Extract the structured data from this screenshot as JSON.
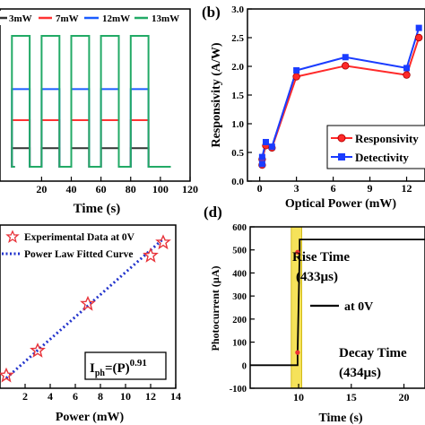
{
  "chart_data": [
    {
      "panel": "a",
      "type": "line",
      "xlabel": "Time (s)",
      "ylabel": "",
      "xlim": [
        -8,
        120
      ],
      "ylim": [
        0,
        1
      ],
      "x_ticks": [
        "20",
        "40",
        "60",
        "80",
        "100",
        "120"
      ],
      "legend_position": "top",
      "series": [
        {
          "name": "3mW",
          "color": "#333333",
          "off": 0.085,
          "on": 0.21
        },
        {
          "name": "7mW",
          "color": "#ff3333",
          "off": 0.085,
          "on": 0.4
        },
        {
          "name": "12mW",
          "color": "#1a5cff",
          "off": 0.085,
          "on": 0.61
        },
        {
          "name": "13mW",
          "color": "#22aa66",
          "off": 0.085,
          "on": 0.97
        }
      ],
      "pulses": [
        [
          0,
          12
        ],
        [
          20,
          32
        ],
        [
          40,
          52
        ],
        [
          60,
          72
        ],
        [
          80,
          92
        ]
      ],
      "end_time": 107
    },
    {
      "panel": "b",
      "panel_label": "(b)",
      "type": "line",
      "xlabel": "Optical Power (mW)",
      "ylabel": "Responsivity (A/W)",
      "xlim": [
        -1,
        13.5
      ],
      "ylim": [
        0,
        3.0
      ],
      "x_ticks": [
        "0",
        "3",
        "6",
        "9",
        "12"
      ],
      "y_ticks": [
        "0.0",
        "0.5",
        "1.0",
        "1.5",
        "2.0",
        "2.5",
        "3.0"
      ],
      "legend_position": "bottom-right",
      "series": [
        {
          "name": "Responsivity",
          "color": "#ff2a2a",
          "marker": "circle",
          "x": [
            0.2,
            0.2,
            0.5,
            1,
            3,
            7,
            12,
            13
          ],
          "y": [
            0.28,
            0.38,
            0.62,
            0.58,
            1.82,
            2.01,
            1.85,
            2.5
          ]
        },
        {
          "name": "Detectivity",
          "color": "#1a3cff",
          "marker": "square",
          "x": [
            0.2,
            0.2,
            0.5,
            1,
            3,
            7,
            12,
            13
          ],
          "y": [
            0.3,
            0.42,
            0.68,
            0.6,
            1.93,
            2.16,
            1.97,
            2.67
          ]
        }
      ]
    },
    {
      "panel": "c",
      "type": "scatter",
      "xlabel": "Power (mW)",
      "ylabel": "",
      "xlim": [
        0,
        14
      ],
      "ylim": [
        0,
        1
      ],
      "x_ticks": [
        "2",
        "4",
        "6",
        "8",
        "10",
        "12",
        "14"
      ],
      "legend_position": "top-left",
      "annotation_base": "I",
      "annotation_sub": "ph",
      "annotation_eq": "=(P)",
      "annotation_exp": "0.91",
      "series": [
        {
          "name": "Experimental Data at 0V",
          "color": "#e8333a",
          "marker": "star",
          "x": [
            0.5,
            3,
            7,
            12,
            13
          ],
          "y": [
            0.04,
            0.21,
            0.53,
            0.86,
            0.95
          ]
        },
        {
          "name": "Power Law Fitted Curve",
          "color": "#2233cc",
          "style": "dotted",
          "x": [
            0.5,
            13.1
          ],
          "y": [
            0.02,
            0.98
          ]
        }
      ]
    },
    {
      "panel": "d",
      "panel_label": "(d)",
      "type": "line",
      "xlabel": "Time (s)",
      "ylabel": "Photocurrent (µA)",
      "xlim": [
        5.4,
        22
      ],
      "ylim": [
        -100,
        600
      ],
      "x_ticks": [
        "10",
        "15",
        "20"
      ],
      "y_ticks": [
        "-100",
        "0",
        "100",
        "200",
        "300",
        "400",
        "500",
        "600"
      ],
      "legend_position": "right",
      "highlight_band": [
        9.3,
        10.3
      ],
      "highlight_color": "#f5e25a",
      "annotations": [
        "Rise Time",
        "(433µs)",
        "Decay Time",
        "(434µs)"
      ],
      "series": [
        {
          "name": "at 0V",
          "color": "#000000",
          "x": [
            5.4,
            9.9,
            9.9,
            10.1,
            10.1,
            22
          ],
          "y": [
            0,
            0,
            55,
            490,
            545,
            545
          ]
        }
      ],
      "markers": [
        {
          "x": 9.9,
          "y": 55,
          "color": "#ee3333"
        },
        {
          "x": 9.9,
          "y": 490,
          "color": "#ee3333"
        }
      ]
    }
  ]
}
